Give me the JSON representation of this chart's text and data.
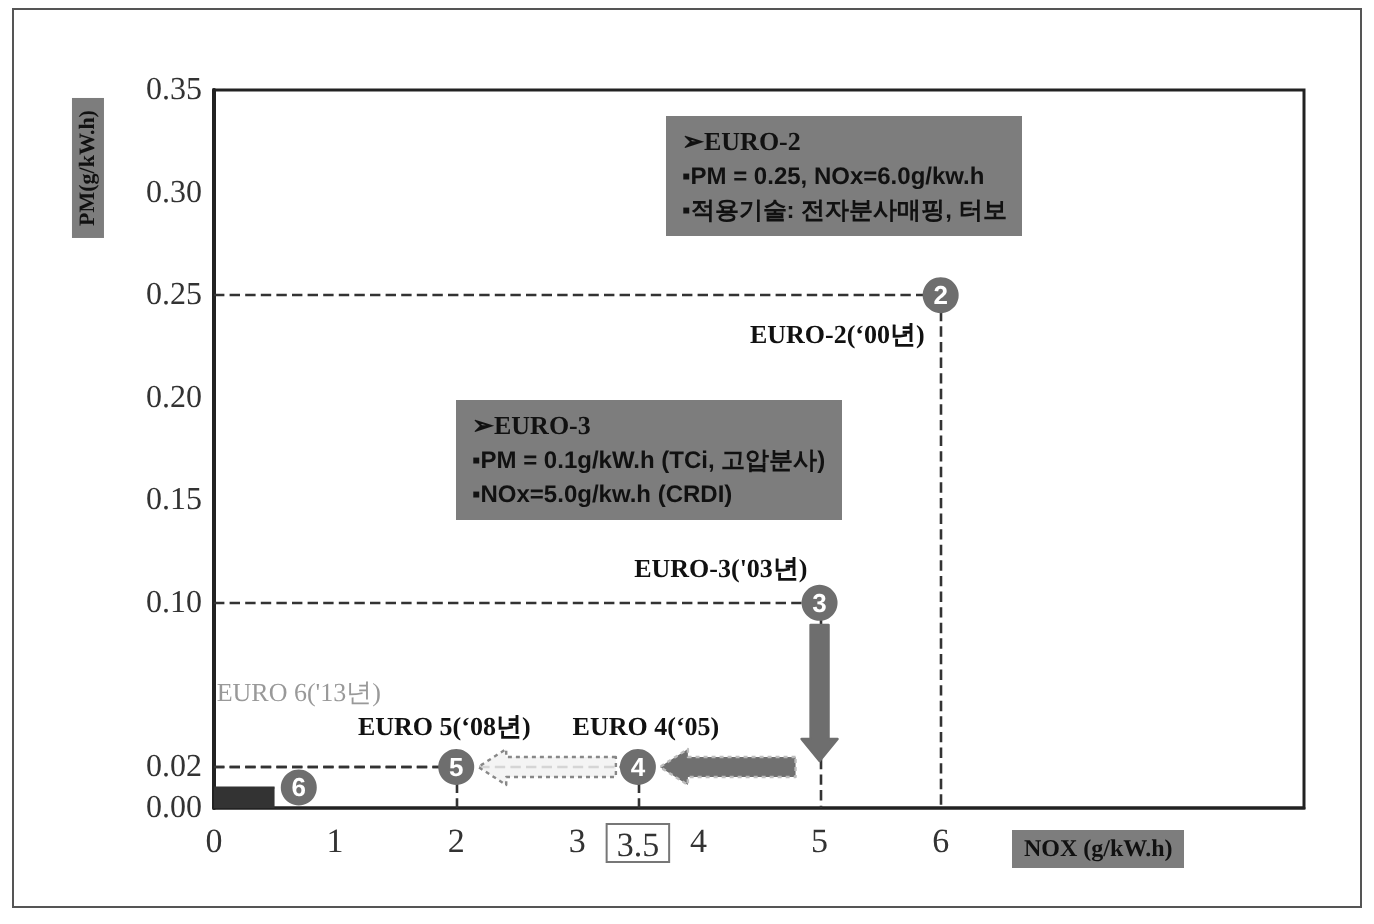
{
  "chart_data": {
    "type": "scatter",
    "xlabel": "NOX (g/kW.h)",
    "ylabel": "PM(g/kW.h)",
    "xlim": [
      0,
      9
    ],
    "xticks": [
      0,
      1,
      2,
      3,
      3.5,
      4,
      5,
      6
    ],
    "ylim": [
      0,
      0.35
    ],
    "yticks": [
      {
        "value": 0,
        "label": "0.00"
      },
      0.02,
      {
        "value": 0.1,
        "label": "0.10"
      },
      0.15,
      {
        "value": 0.2,
        "label": "0.20"
      },
      0.25,
      {
        "value": 0.3,
        "label": "0.30"
      },
      0.35
    ],
    "marker": "circle",
    "series": [
      {
        "type": "area",
        "marker": "none",
        "color": "#333333",
        "x": [
          0,
          0.5
        ],
        "values": [
          0.01,
          0.01
        ]
      },
      {
        "name": "EURO-2(‘00년)",
        "color": "#6e6e6e",
        "x": [
          6
        ],
        "values": [
          0.25
        ],
        "line_style": "dashed"
      },
      {
        "name": "EURO-3('03년)",
        "color": "#6e6e6e",
        "x": [
          5
        ],
        "values": [
          0.1
        ],
        "line_style": "dashed"
      },
      {
        "name": "EURO 4(‘05)",
        "color": "#6e6e6e",
        "x": [
          3.5
        ],
        "values": [
          0.02
        ],
        "line_style": "dashed"
      },
      {
        "name": "EURO 5(‘08년)",
        "color": "#6e6e6e",
        "x": [
          2
        ],
        "values": [
          0.02
        ],
        "line_style": "dashed"
      },
      {
        "name": "EURO 6('13년)",
        "color": "#6e6e6e",
        "x": [
          0.7
        ],
        "values": [
          0.01
        ]
      }
    ],
    "annotations": [
      "➢EURO-2\n▪PM = 0.25, NOx=6.0g/kw.h\n▪적용기술: 전자분사매핑, 터보",
      "➢EURO-3\n▪PM = 0.1g/kW.h (TCi, 고압분사)\n▪NOx=5.0g/kw.h (CRDI)",
      {
        "text": "2",
        "x": 6,
        "y": 0.25
      },
      {
        "text": "3",
        "x": 5,
        "y": 0.1
      },
      {
        "text": "4",
        "x": 3.5,
        "y": 0.02
      },
      {
        "text": "5",
        "x": 2,
        "y": 0.02
      },
      {
        "text": "6",
        "x": 0.7,
        "y": 0.01
      }
    ]
  }
}
